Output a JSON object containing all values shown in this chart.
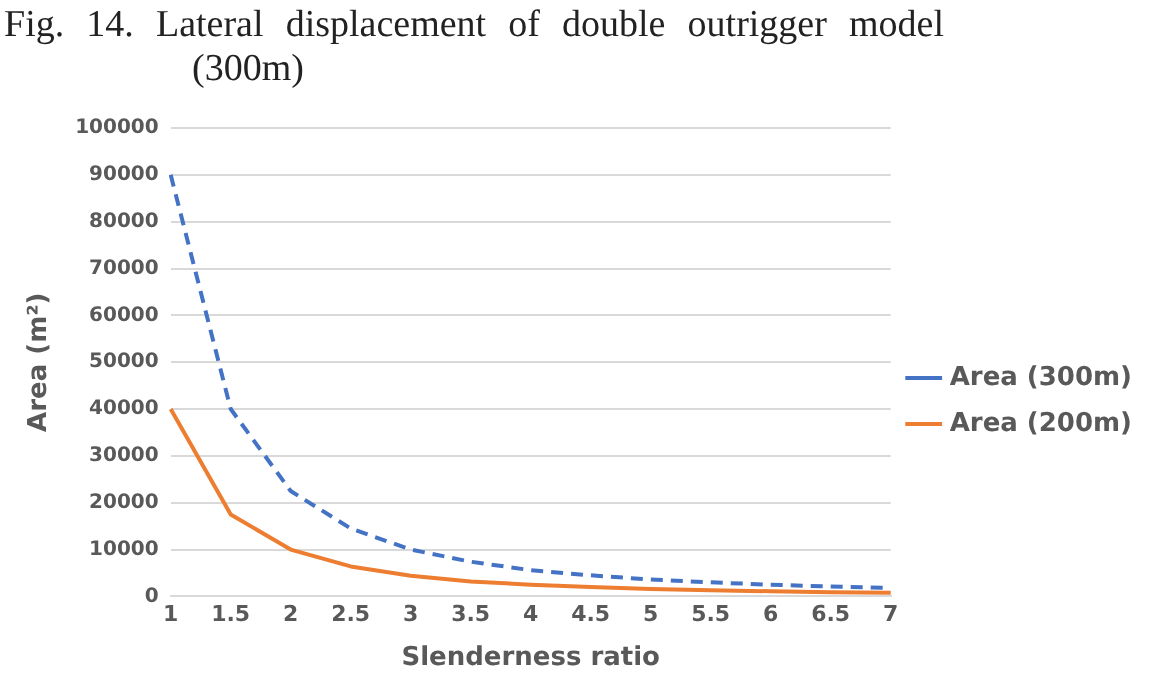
{
  "chart_data": {
    "type": "line",
    "title": "Fig. 14. Lateral displacement of double outrigger model (300m)",
    "xlabel": "Slenderness ratio",
    "ylabel": "Area (m²)",
    "categories": [
      "1",
      "1.5",
      "2",
      "2.5",
      "3",
      "3.5",
      "4",
      "4.5",
      "5",
      "5.5",
      "6",
      "6.5",
      "7"
    ],
    "series": [
      {
        "name": "Area (300m)",
        "color": "#4472c4",
        "line_style": "dashed",
        "values": [
          90000,
          40000,
          22500,
          14500,
          10000,
          7400,
          5600,
          4500,
          3600,
          3000,
          2500,
          2100,
          1800
        ]
      },
      {
        "name": "Area (200m)",
        "color": "#ed7d31",
        "line_style": "solid",
        "values": [
          40000,
          17500,
          10000,
          6400,
          4400,
          3200,
          2500,
          2000,
          1600,
          1300,
          1100,
          900,
          800
        ]
      }
    ],
    "ylim": [
      0,
      100000
    ],
    "yticks": [
      0,
      10000,
      20000,
      30000,
      40000,
      50000,
      60000,
      70000,
      80000,
      90000,
      100000
    ],
    "grid": "y",
    "legend": "right",
    "marker": "none"
  }
}
